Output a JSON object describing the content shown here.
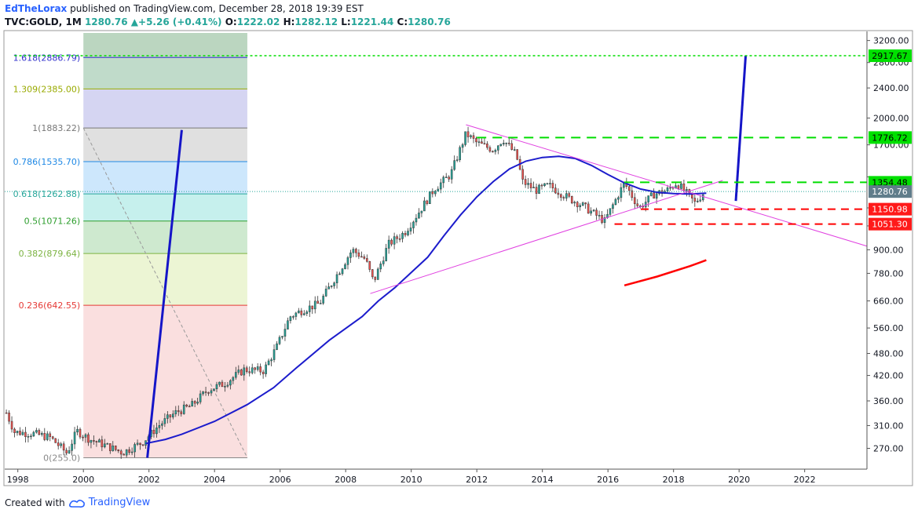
{
  "header": {
    "author": "EdTheLorax",
    "published": "published on TradingView.com, December 28, 2018 19:39 EST",
    "symbol": "TVC:GOLD, 1M",
    "last": "1280.76",
    "change": "+5.26 (+0.41%)",
    "o_label": "O:",
    "o": "1222.02",
    "h_label": "H:",
    "h": "1282.12",
    "l_label": "L:",
    "l": "1221.44",
    "c_label": "C:",
    "c": "1280.76"
  },
  "footer": {
    "created_with": "Created with",
    "brand": "TradingView"
  },
  "colors": {
    "up": "#26a69a",
    "down": "#ef5350",
    "ma": "#1c1ccc",
    "proj": "#1515c8",
    "triangle": "#e040e0",
    "green_line": "#00dd00",
    "red_line": "#ff0000"
  },
  "chart_data": {
    "type": "candlestick",
    "scale": "log",
    "y_ticks": [
      270,
      310,
      360,
      420,
      480,
      560,
      660,
      780,
      900,
      1040,
      1160,
      1400,
      1700,
      2000,
      2400,
      2800,
      3200
    ],
    "y_tick_labels": [
      "270.00",
      "310.00",
      "360.00",
      "420.00",
      "480.00",
      "560.00",
      "660.00",
      "780.00",
      "900.00",
      "",
      "",
      "",
      "1700.00",
      "2000.00",
      "2400.00",
      "2800.00",
      "3200.00"
    ],
    "x_ticks": [
      1998,
      2000,
      2002,
      2004,
      2006,
      2008,
      2010,
      2012,
      2014,
      2016,
      2018,
      2020,
      2022
    ],
    "x_range": [
      1997.6,
      2023.9
    ],
    "y_range": [
      238,
      3350
    ],
    "fib_levels": [
      {
        "label": "1.618(2886.79)",
        "value": 2886.79,
        "color": "#3333cc",
        "fill": "#2e7d5c"
      },
      {
        "label": "1.309(2385.00)",
        "value": 2385.0,
        "color": "#99aa00",
        "fill": "#3a8f5a"
      },
      {
        "label": "1(1883.22)",
        "value": 1883.22,
        "color": "#777777",
        "fill": "#7b7bd8"
      },
      {
        "label": "0.786(1535.70)",
        "value": 1535.7,
        "color": "#1e88e5",
        "fill": "#9e9e9e"
      },
      {
        "label": "0.618(1262.88)",
        "value": 1262.88,
        "color": "#26a69a",
        "fill": "#64b5f6"
      },
      {
        "label": "0.5(1071.26)",
        "value": 1071.26,
        "color": "#2e9e2e",
        "fill": "#4dd0c8"
      },
      {
        "label": "0.382(879.64)",
        "value": 879.64,
        "color": "#7cb342",
        "fill": "#66bb6a"
      },
      {
        "label": "0.236(642.55)",
        "value": 642.55,
        "color": "#e53935",
        "fill": "#c5e17a"
      },
      {
        "label": "0(255.0)",
        "value": 255.0,
        "color": "#888888",
        "fill": "#ef9a9a"
      }
    ],
    "price_labels": [
      {
        "value": 2917.67,
        "text": "2917.67",
        "bg": "#00e000",
        "fg": "#000000"
      },
      {
        "value": 1776.72,
        "text": "1776.72",
        "bg": "#00e000",
        "fg": "#000000"
      },
      {
        "value": 1354.48,
        "text": "1354.48",
        "bg": "#00e000",
        "fg": "#000000"
      },
      {
        "value": 1280.76,
        "text": "1280.76",
        "bg": "#607d8b",
        "fg": "#ffffff"
      },
      {
        "value": 1150.98,
        "text": "1150.98",
        "bg": "#ff1a1a",
        "fg": "#ffffff"
      },
      {
        "value": 1051.3,
        "text": "1051.30",
        "bg": "#ff1a1a",
        "fg": "#ffffff"
      }
    ],
    "hlines": [
      {
        "value": 2917.67,
        "x0": 1997.9,
        "color": "#00dd00",
        "dash": "3,3",
        "width": 1.5
      },
      {
        "value": 1776.72,
        "x0": 2012.0,
        "color": "#00dd00",
        "dash": "12,8",
        "width": 2
      },
      {
        "value": 1354.48,
        "x0": 2016.5,
        "color": "#00dd00",
        "dash": "12,8",
        "width": 2
      },
      {
        "value": 1150.98,
        "x0": 2017.0,
        "color": "#ff0000",
        "dash": "10,7",
        "width": 2
      },
      {
        "value": 1051.3,
        "x0": 2016.2,
        "color": "#ff0000",
        "dash": "10,7",
        "width": 2
      }
    ],
    "triangle_upper": [
      [
        2011.67,
        1920
      ],
      [
        2023.9,
        920
      ]
    ],
    "triangle_lower": [
      [
        2008.75,
        690
      ],
      [
        2019.5,
        1370
      ]
    ],
    "projection": [
      [
        2001.95,
        255
      ],
      [
        2003.0,
        1860
      ],
      [
        2019.9,
        1210
      ],
      [
        2020.2,
        2917
      ]
    ],
    "fib_trend": [
      [
        2000.0,
        1883.22
      ],
      [
        2005.0,
        255
      ]
    ],
    "ma200": [
      [
        2016.5,
        725
      ],
      [
        2017.5,
        765
      ],
      [
        2018.5,
        815
      ],
      [
        2019.0,
        845
      ]
    ],
    "ma": [
      [
        2001.9,
        278
      ],
      [
        2002.5,
        285
      ],
      [
        2003.0,
        294
      ],
      [
        2004.0,
        318
      ],
      [
        2005.0,
        352
      ],
      [
        2005.8,
        390
      ],
      [
        2006.5,
        440
      ],
      [
        2007.5,
        520
      ],
      [
        2008.5,
        600
      ],
      [
        2009.0,
        660
      ],
      [
        2009.5,
        715
      ],
      [
        2010.5,
        860
      ],
      [
        2011.0,
        980
      ],
      [
        2011.5,
        1110
      ],
      [
        2012.0,
        1240
      ],
      [
        2012.5,
        1360
      ],
      [
        2013.0,
        1470
      ],
      [
        2013.5,
        1540
      ],
      [
        2014.0,
        1575
      ],
      [
        2014.5,
        1585
      ],
      [
        2015.0,
        1565
      ],
      [
        2015.5,
        1500
      ],
      [
        2016.0,
        1420
      ],
      [
        2016.5,
        1350
      ],
      [
        2017.0,
        1300
      ],
      [
        2017.5,
        1275
      ],
      [
        2018.0,
        1265
      ],
      [
        2018.5,
        1262
      ],
      [
        2019.0,
        1268
      ]
    ],
    "price_anchors": [
      [
        1997.65,
        335
      ],
      [
        1997.9,
        298
      ],
      [
        1998.5,
        295
      ],
      [
        1999.0,
        288
      ],
      [
        1999.5,
        262
      ],
      [
        1999.8,
        300
      ],
      [
        2000.2,
        285
      ],
      [
        2000.8,
        272
      ],
      [
        2001.2,
        263
      ],
      [
        2001.8,
        280
      ],
      [
        2002.3,
        310
      ],
      [
        2002.8,
        335
      ],
      [
        2003.3,
        350
      ],
      [
        2003.8,
        385
      ],
      [
        2004.3,
        400
      ],
      [
        2004.9,
        435
      ],
      [
        2005.5,
        432
      ],
      [
        2005.9,
        500
      ],
      [
        2006.3,
        600
      ],
      [
        2006.7,
        625
      ],
      [
        2007.2,
        650
      ],
      [
        2007.8,
        790
      ],
      [
        2008.2,
        900
      ],
      [
        2008.6,
        850
      ],
      [
        2008.85,
        740
      ],
      [
        2009.3,
        930
      ],
      [
        2009.8,
        1000
      ],
      [
        2010.2,
        1120
      ],
      [
        2010.7,
        1300
      ],
      [
        2011.2,
        1420
      ],
      [
        2011.67,
        1820
      ],
      [
        2012.0,
        1720
      ],
      [
        2012.5,
        1650
      ],
      [
        2012.8,
        1760
      ],
      [
        2013.2,
        1600
      ],
      [
        2013.4,
        1360
      ],
      [
        2013.8,
        1290
      ],
      [
        2014.2,
        1330
      ],
      [
        2014.8,
        1230
      ],
      [
        2015.2,
        1180
      ],
      [
        2015.9,
        1070
      ],
      [
        2016.5,
        1350
      ],
      [
        2016.95,
        1160
      ],
      [
        2017.4,
        1260
      ],
      [
        2017.8,
        1290
      ],
      [
        2018.1,
        1350
      ],
      [
        2018.5,
        1240
      ],
      [
        2018.65,
        1195
      ],
      [
        2018.95,
        1281
      ]
    ]
  }
}
